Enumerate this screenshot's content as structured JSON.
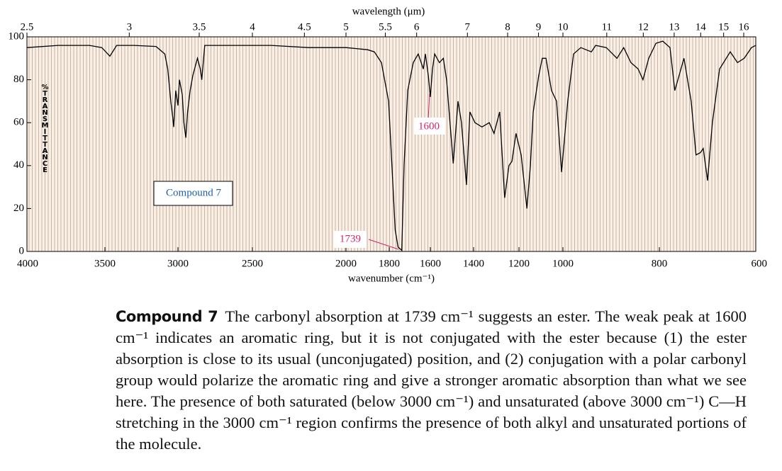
{
  "chart_data": {
    "type": "line",
    "x_label": "wavenumber (cm⁻¹)",
    "y_label": "%TRANSMITTANCE",
    "label": "Compound 7",
    "color": "#000000",
    "annotations": [
      {
        "text": "1600"
      },
      {
        "text": "1739"
      }
    ],
    "annotation_color": "#d6226b",
    "top_axis": {
      "label": "wavelength (μm)",
      "ticks": [
        2.5,
        3,
        3.5,
        4,
        4.5,
        5,
        5.5,
        6,
        7,
        8,
        9,
        10,
        11,
        12,
        13,
        14,
        15,
        16
      ]
    },
    "xlim": [
      4000,
      600
    ],
    "xticks": [
      4000,
      3500,
      3000,
      2500,
      2000,
      1800,
      1600,
      1400,
      1200,
      1000,
      800,
      600
    ],
    "ylim": [
      0,
      100
    ],
    "yticks": [
      0,
      20,
      40,
      60,
      80,
      100
    ],
    "x": [
      4000,
      3800,
      3600,
      3520,
      3466,
      3420,
      3300,
      3150,
      3090,
      3070,
      3049,
      3035,
      3029,
      3015,
      3000,
      2990,
      2971,
      2960,
      2947,
      2935,
      2918,
      2900,
      2869,
      2850,
      2840,
      2820,
      2700,
      2400,
      2200,
      2000,
      1900,
      1869,
      1836,
      1803,
      1787,
      1771,
      1757,
      1739,
      1728,
      1710,
      1683,
      1659,
      1634,
      1624,
      1610,
      1600,
      1590,
      1580,
      1558,
      1540,
      1525,
      1494,
      1472,
      1456,
      1433,
      1417,
      1394,
      1363,
      1331,
      1310,
      1285,
      1263,
      1244,
      1231,
      1213,
      1190,
      1164,
      1148,
      1135,
      1110,
      1094,
      1077,
      1052,
      1029,
      1006,
      990,
      978,
      963,
      941,
      932,
      910,
      888,
      874,
      859,
      844,
      834,
      822,
      807,
      793,
      778,
      768,
      759,
      749,
      734,
      724,
      715,
      709,
      700,
      690,
      675,
      653,
      638,
      624,
      609,
      600
    ],
    "values": [
      95,
      96,
      96,
      95,
      91,
      96,
      96,
      95.5,
      92,
      85,
      70,
      62,
      58,
      75,
      68,
      80,
      73,
      60,
      53,
      65,
      75,
      82,
      90,
      85,
      80,
      96,
      96,
      96,
      95,
      95,
      94,
      93,
      88,
      70,
      40,
      10,
      2,
      0.5,
      40,
      75,
      88,
      92,
      85,
      92,
      82,
      72,
      85,
      92,
      88,
      90,
      80,
      41,
      70,
      60,
      31,
      65,
      60,
      58,
      60,
      55,
      65,
      25,
      40,
      42,
      55,
      45,
      20,
      40,
      65,
      82,
      90,
      90,
      75,
      70,
      37,
      70,
      92,
      95,
      93,
      96,
      95,
      90,
      95,
      88,
      85,
      80,
      90,
      97,
      98,
      95,
      75,
      82,
      90,
      70,
      45,
      46,
      48,
      33,
      60,
      85,
      93,
      88,
      90,
      95,
      96
    ]
  },
  "caption": {
    "label": "Compound 7",
    "text": "The carbonyl absorption at 1739 cm⁻¹ suggests an ester. The weak peak at 1600 cm⁻¹ indicates an aromatic ring, but it is not conjugated with the ester because (1) the ester absorption is close to its usual (unconjugated) position, and (2) conjugation with a polar carbonyl group would polarize the aromatic ring and give a stronger aromatic absorption than what we see here. The presence of both saturated (below 3000 cm⁻¹) and unsaturated (above 3000 cm⁻¹) C—H stretching in the 3000 cm⁻¹ region confirms the presence of both alkyl and unsaturated portions of the molecule."
  }
}
